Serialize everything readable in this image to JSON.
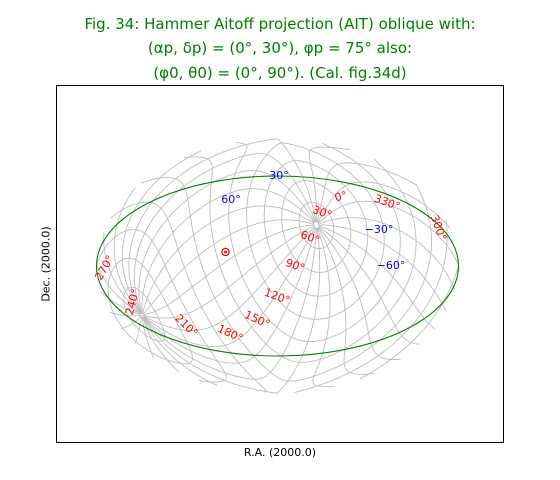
{
  "title": {
    "line1": "Fig. 34: Hammer Aitoff projection (AIT) oblique with:",
    "line2": "(αp, δp) = (0°, 30°), φp = 75° also:",
    "line3": "(φ0, θ0) = (0°, 90°). (Cal. fig.34d)"
  },
  "colors": {
    "title": "#008000",
    "grid": "#bdbdbd",
    "border": "#008000",
    "lon_labels": "#ff0000",
    "lat_labels": "#0000ff",
    "marker": "#ff0000"
  },
  "chart_data": {
    "type": "scatter",
    "projection": "Hammer-Aitoff (AIT), oblique",
    "xlabel": "R.A. (2000.0)",
    "ylabel": "Dec. (2000.0)",
    "grid": true,
    "pole_offset_deg": [
      -38,
      26
    ],
    "meridians_deg": [
      0,
      15,
      30,
      45,
      60,
      75,
      90,
      105,
      120,
      135,
      150,
      165,
      180,
      195,
      210,
      225,
      240,
      255,
      270,
      285,
      300,
      315,
      330,
      345
    ],
    "parallels_deg": [
      -75,
      -60,
      -45,
      -30,
      -15,
      0,
      15,
      30,
      45,
      60,
      75
    ],
    "longitude_labels": [
      "0°",
      "30°",
      "60°",
      "90°",
      "120°",
      "150°",
      "180°",
      "210°",
      "240°",
      "270°",
      "300°",
      "330°"
    ],
    "latitude_labels": [
      "30°",
      "60°",
      "−30°",
      "−60°"
    ],
    "marker": {
      "symbol": "dot-in-circle",
      "color": "#ff0000"
    }
  }
}
